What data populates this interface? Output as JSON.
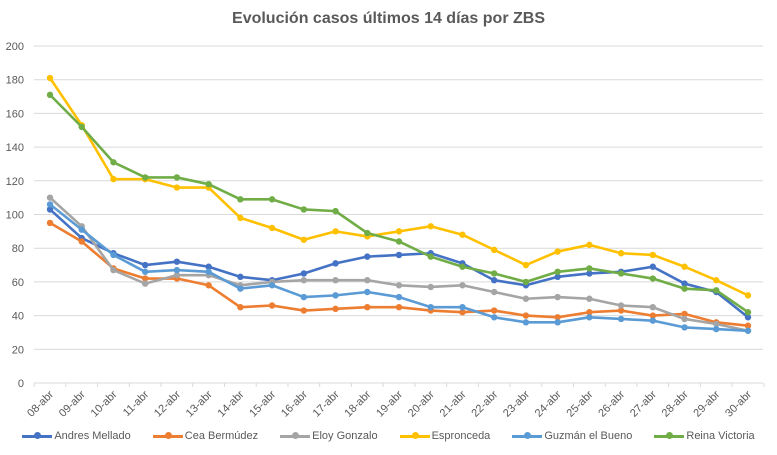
{
  "chart_data": {
    "type": "line",
    "title": "Evolución casos últimos 14 días por ZBS",
    "xlabel": "",
    "ylabel": "",
    "ylim": [
      0,
      200
    ],
    "yticks": [
      0,
      20,
      40,
      60,
      80,
      100,
      120,
      140,
      160,
      180,
      200
    ],
    "grid": true,
    "legend_position": "bottom",
    "categories": [
      "08-abr",
      "09-abr",
      "10-abr",
      "11-abr",
      "12-abr",
      "13-abr",
      "14-abr",
      "15-abr",
      "16-abr",
      "17-abr",
      "18-abr",
      "19-abr",
      "20-abr",
      "21-abr",
      "22-abr",
      "23-abr",
      "24-abr",
      "25-abr",
      "26-abr",
      "27-abr",
      "28-abr",
      "29-abr",
      "30-abr"
    ],
    "series": [
      {
        "name": "Andres Mellado",
        "color": "#4472C4",
        "values": [
          103,
          86,
          77,
          70,
          72,
          69,
          63,
          61,
          65,
          71,
          75,
          76,
          77,
          71,
          61,
          58,
          63,
          65,
          66,
          69,
          59,
          54,
          39
        ]
      },
      {
        "name": "Cea Bermúdez",
        "color": "#ED7D31",
        "values": [
          95,
          84,
          68,
          62,
          62,
          58,
          45,
          46,
          43,
          44,
          45,
          45,
          43,
          42,
          43,
          40,
          39,
          42,
          43,
          40,
          41,
          36,
          34
        ]
      },
      {
        "name": "Eloy Gonzalo",
        "color": "#A5A5A5",
        "values": [
          110,
          93,
          67,
          59,
          64,
          64,
          58,
          60,
          61,
          61,
          61,
          58,
          57,
          58,
          54,
          50,
          51,
          50,
          46,
          45,
          38,
          35,
          31
        ]
      },
      {
        "name": "Espronceda",
        "color": "#FFC000",
        "values": [
          181,
          153,
          121,
          121,
          116,
          116,
          98,
          92,
          85,
          90,
          87,
          90,
          93,
          88,
          79,
          70,
          78,
          82,
          77,
          76,
          69,
          61,
          52
        ]
      },
      {
        "name": "Guzmán el Bueno",
        "color": "#5B9BD5",
        "values": [
          106,
          91,
          76,
          66,
          67,
          66,
          56,
          58,
          51,
          52,
          54,
          51,
          45,
          45,
          39,
          36,
          36,
          39,
          38,
          37,
          33,
          32,
          31
        ]
      },
      {
        "name": "Reina Victoria",
        "color": "#70AD47",
        "values": [
          171,
          152,
          131,
          122,
          122,
          118,
          109,
          109,
          103,
          102,
          89,
          84,
          75,
          69,
          65,
          60,
          66,
          68,
          65,
          62,
          56,
          55,
          42
        ]
      }
    ]
  }
}
